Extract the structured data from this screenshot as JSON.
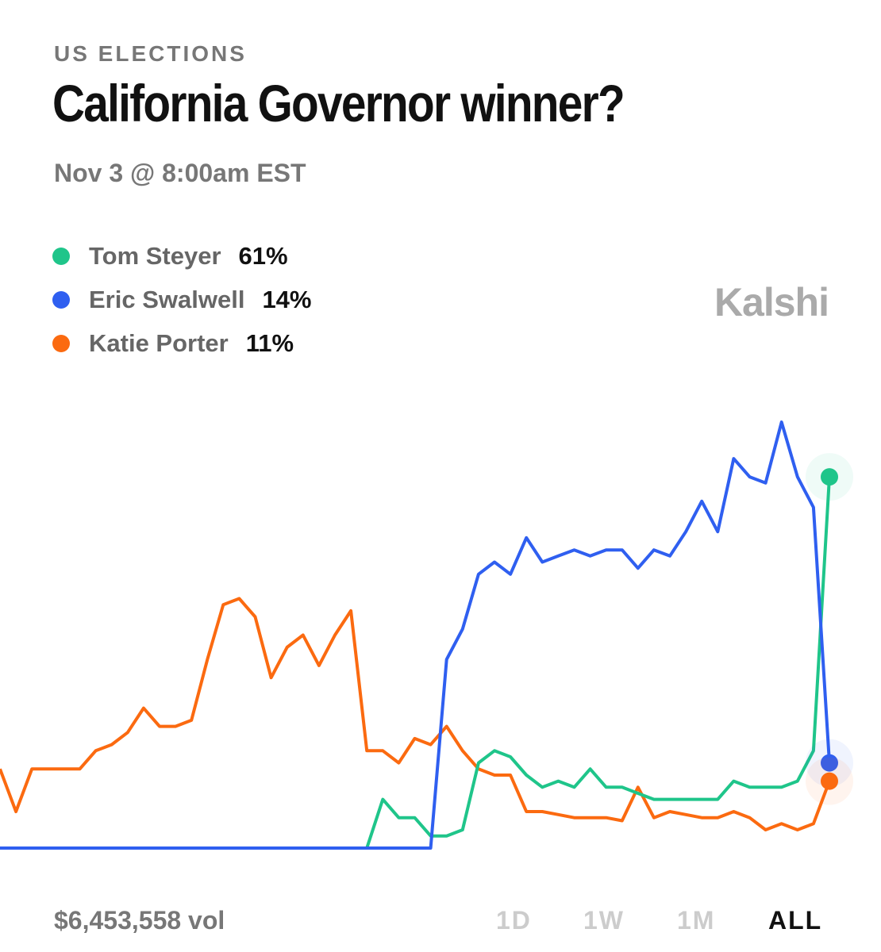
{
  "chart_data": {
    "type": "line",
    "category": "US ELECTIONS",
    "title": "California Governor winner?",
    "subtitle": "Nov 3 @ 8:00am EST",
    "brand": "Kalshi",
    "volume": "$6,453,558 vol",
    "ranges": [
      "1D",
      "1W",
      "1M",
      "ALL"
    ],
    "active_range": 3,
    "ylim": [
      0,
      100
    ],
    "series": [
      {
        "name": "Tom Steyer",
        "color": "#1fc58a",
        "label": "61%",
        "values": [
          0,
          0,
          0,
          0,
          0,
          0,
          0,
          0,
          0,
          0,
          0,
          0,
          0,
          0,
          0,
          0,
          0,
          0,
          0,
          0,
          0,
          0,
          0,
          0,
          8,
          5,
          5,
          2,
          2,
          3,
          14,
          16,
          15,
          12,
          10,
          11,
          10,
          13,
          10,
          10,
          9,
          8,
          8,
          8,
          8,
          8,
          11,
          10,
          10,
          10,
          11,
          16,
          61
        ]
      },
      {
        "name": "Eric Swalwell",
        "color": "#2f5ff0",
        "label": "14%",
        "values": [
          0,
          0,
          0,
          0,
          0,
          0,
          0,
          0,
          0,
          0,
          0,
          0,
          0,
          0,
          0,
          0,
          0,
          0,
          0,
          0,
          0,
          0,
          0,
          0,
          0,
          0,
          0,
          0,
          31,
          36,
          45,
          47,
          45,
          51,
          47,
          48,
          49,
          48,
          49,
          49,
          46,
          49,
          48,
          52,
          57,
          52,
          64,
          61,
          60,
          70,
          61,
          56,
          14
        ]
      },
      {
        "name": "Katie Porter",
        "color": "#fb6a10",
        "label": "11%",
        "values": [
          13,
          6,
          13,
          13,
          13,
          13,
          16,
          17,
          19,
          23,
          20,
          20,
          21,
          31,
          40,
          41,
          38,
          28,
          33,
          35,
          30,
          35,
          39,
          16,
          16,
          14,
          18,
          17,
          20,
          16,
          13,
          12,
          12,
          6,
          6,
          5.5,
          5,
          5,
          5,
          4.5,
          10,
          5,
          6,
          5.5,
          5,
          5,
          6,
          5,
          3,
          4,
          3,
          4,
          11
        ]
      }
    ]
  }
}
